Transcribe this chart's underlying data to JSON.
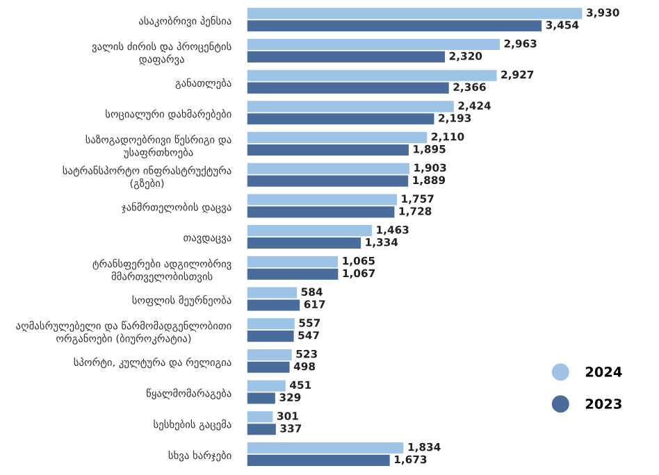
{
  "chart_data": {
    "type": "bar",
    "orientation": "horizontal",
    "legend": "bottom right",
    "categories": [
      "ასაკობრივი პენსია",
      "ვალის ძირის და პროცენტის\nდაფარვა",
      "განათლება",
      "სოციალური დახმარებები",
      "საზოგადოებრივი წესრიგი და\nუსაფრთხოება",
      "სატრანსპორტო ინფრასტრუქტურა\n(გზები)",
      "ჯანმრთელობის დაცვა",
      "თავდაცვა",
      "ტრანსფერები ადგილობრივ\nმმართველობისთვის",
      "სოფლის მეურნეობა",
      "აღმასრულებელი და წარმომადგენლობითი\nორგანოები (ბიუროკრატია)",
      "სპორტი, კულტურა და რელიგია",
      "წყალმომარაგება",
      "სესხების გაცემა",
      "სხვა ხარჯები"
    ],
    "series": [
      {
        "name": "2024",
        "color": "#9dc3e6",
        "values": [
          3930,
          2963,
          2927,
          2424,
          2110,
          1903,
          1757,
          1463,
          1065,
          584,
          557,
          523,
          451,
          301,
          1834
        ],
        "value_labels": [
          "3,930",
          "2,963",
          "2,927",
          "2,424",
          "2,110",
          "1,903",
          "1,757",
          "1,463",
          "1,065",
          "584",
          "557",
          "523",
          "451",
          "301",
          "1,834"
        ]
      },
      {
        "name": "2023",
        "color": "#4a6c9b",
        "values": [
          3454,
          2320,
          2366,
          2193,
          1895,
          1889,
          1728,
          1334,
          1067,
          617,
          547,
          498,
          329,
          337,
          1673
        ],
        "value_labels": [
          "3,454",
          "2,320",
          "2,366",
          "2,193",
          "1,895",
          "1,889",
          "1,728",
          "1,334",
          "1,067",
          "617",
          "547",
          "498",
          "329",
          "337",
          "1,673"
        ]
      }
    ]
  }
}
